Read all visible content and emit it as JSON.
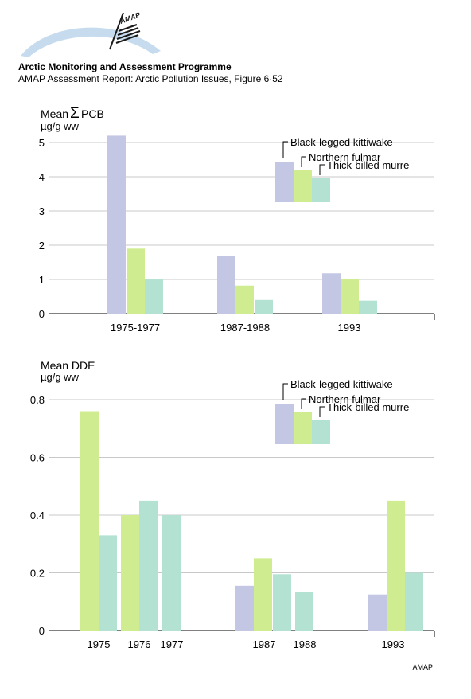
{
  "header": {
    "logo_text": "AMAP",
    "organization": "Arctic Monitoring and Assessment Programme",
    "report": "AMAP Assessment Report: Arctic Pollution Issues, Figure 6·52"
  },
  "footer": {
    "credit": "AMAP"
  },
  "colors": {
    "Black-legged kittiwake": "#c3c7e3",
    "Northern fulmar": "#cfec91",
    "Thick-billed murre": "#b3e2d2",
    "grid": "#c8c8c8",
    "logo_arc": "#c6dcee"
  },
  "chart_data": [
    {
      "type": "bar",
      "ylabel_prefix": "Mean ",
      "ylabel_symbol": "Σ",
      "ylabel_suffix": "PCB",
      "unit": "µg/g ww",
      "ylim": [
        0,
        5
      ],
      "yticks": [
        0,
        1,
        2,
        3,
        4,
        5
      ],
      "grid": true,
      "legend": "top-right",
      "series_names": [
        "Black-legged kittiwake",
        "Northern fulmar",
        "Thick-billed murre"
      ],
      "groups": [
        {
          "label": "1975-1977",
          "bars": [
            {
              "series": "Black-legged kittiwake",
              "value": 5.2
            },
            {
              "series": "Northern fulmar",
              "value": 1.9
            },
            {
              "series": "Thick-billed murre",
              "value": 1.0
            }
          ]
        },
        {
          "label": "1987-1988",
          "bars": [
            {
              "series": "Black-legged kittiwake",
              "value": 1.68
            },
            {
              "series": "Northern fulmar",
              "value": 0.82
            },
            {
              "series": "Thick-billed murre",
              "value": 0.4
            }
          ]
        },
        {
          "label": "1993",
          "bars": [
            {
              "series": "Black-legged kittiwake",
              "value": 1.18
            },
            {
              "series": "Northern fulmar",
              "value": 1.0
            },
            {
              "series": "Thick-billed murre",
              "value": 0.38
            }
          ]
        }
      ]
    },
    {
      "type": "bar",
      "ylabel_prefix": "Mean DDE",
      "ylabel_symbol": "",
      "ylabel_suffix": "",
      "unit": "µg/g ww",
      "ylim": [
        0,
        0.8
      ],
      "yticks": [
        0,
        0.2,
        0.4,
        0.6,
        0.8
      ],
      "grid": true,
      "legend": "top-right",
      "series_names": [
        "Black-legged kittiwake",
        "Northern fulmar",
        "Thick-billed murre"
      ],
      "groups": [
        {
          "label": "1975",
          "bars": [
            {
              "series": "Northern fulmar",
              "value": 0.76
            },
            {
              "series": "Thick-billed murre",
              "value": 0.33
            }
          ]
        },
        {
          "label": "1976",
          "bars": [
            {
              "series": "Northern fulmar",
              "value": 0.4
            },
            {
              "series": "Thick-billed murre",
              "value": 0.45
            }
          ]
        },
        {
          "label": "1977",
          "bars": [
            {
              "series": "Thick-billed murre",
              "value": 0.4
            }
          ]
        },
        {
          "label": "1987",
          "bars": [
            {
              "series": "Black-legged kittiwake",
              "value": 0.155
            },
            {
              "series": "Northern fulmar",
              "value": 0.25
            },
            {
              "series": "Thick-billed murre",
              "value": 0.195
            }
          ]
        },
        {
          "label": "1988",
          "bars": [
            {
              "series": "Thick-billed murre",
              "value": 0.135
            }
          ]
        },
        {
          "label": "1993",
          "bars": [
            {
              "series": "Black-legged kittiwake",
              "value": 0.125
            },
            {
              "series": "Northern fulmar",
              "value": 0.45
            },
            {
              "series": "Thick-billed murre",
              "value": 0.2
            }
          ]
        }
      ]
    }
  ]
}
